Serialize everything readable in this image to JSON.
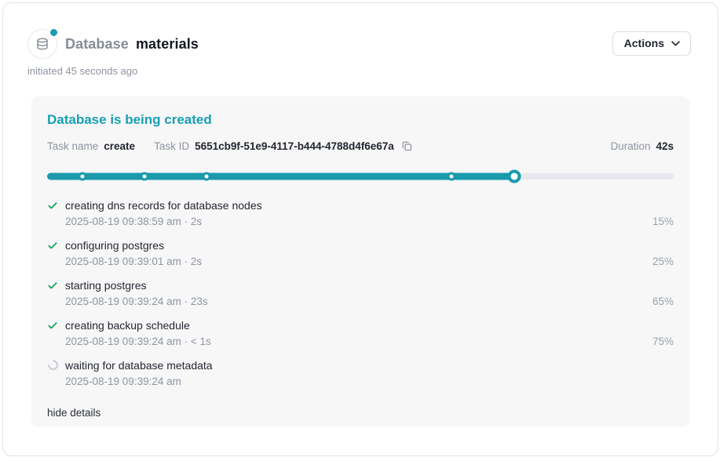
{
  "colors": {
    "teal_title": "#189fb3",
    "teal_bar": "#1b99ad",
    "green_check": "#1fa565",
    "gray_text": "#8e95a0",
    "dark_text": "#14181f",
    "track": "#e7e8ec",
    "card_bg": "#f7f7f8"
  },
  "header": {
    "icon": "database-icon",
    "status_dot_color": "#1b9cb1",
    "title_prefix": "Database",
    "title_name": "materials",
    "subtitle": "initiated 45 seconds ago",
    "actions_label": "Actions"
  },
  "card": {
    "title": "Database is being created",
    "task_name_label": "Task name",
    "task_name": "create",
    "task_id_label": "Task ID",
    "task_id": "5651cb9f-51e9-4117-b444-4788d4f6e67a",
    "copy_icon": "copy-icon",
    "duration_label": "Duration",
    "duration_value": "42s",
    "progress": {
      "percent": 74.5,
      "milestones_percent": [
        5.7,
        15.6,
        25.5,
        64.5
      ],
      "fill_color": "#1b99ad",
      "track_color": "#e7e8ec"
    },
    "steps": [
      {
        "status": "done",
        "title": "creating dns records for database nodes",
        "meta": "2025-08-19 09:38:59 am · 2s",
        "percent": "15%"
      },
      {
        "status": "done",
        "title": "configuring postgres",
        "meta": "2025-08-19 09:39:01 am · 2s",
        "percent": "25%"
      },
      {
        "status": "done",
        "title": "starting postgres",
        "meta": "2025-08-19 09:39:24 am · 23s",
        "percent": "65%"
      },
      {
        "status": "done",
        "title": "creating backup schedule",
        "meta": "2025-08-19 09:39:24 am · < 1s",
        "percent": "75%"
      },
      {
        "status": "pending",
        "title": "waiting for database metadata",
        "meta": "2025-08-19 09:39:24 am",
        "percent": ""
      }
    ],
    "hide_details_label": "hide details"
  }
}
